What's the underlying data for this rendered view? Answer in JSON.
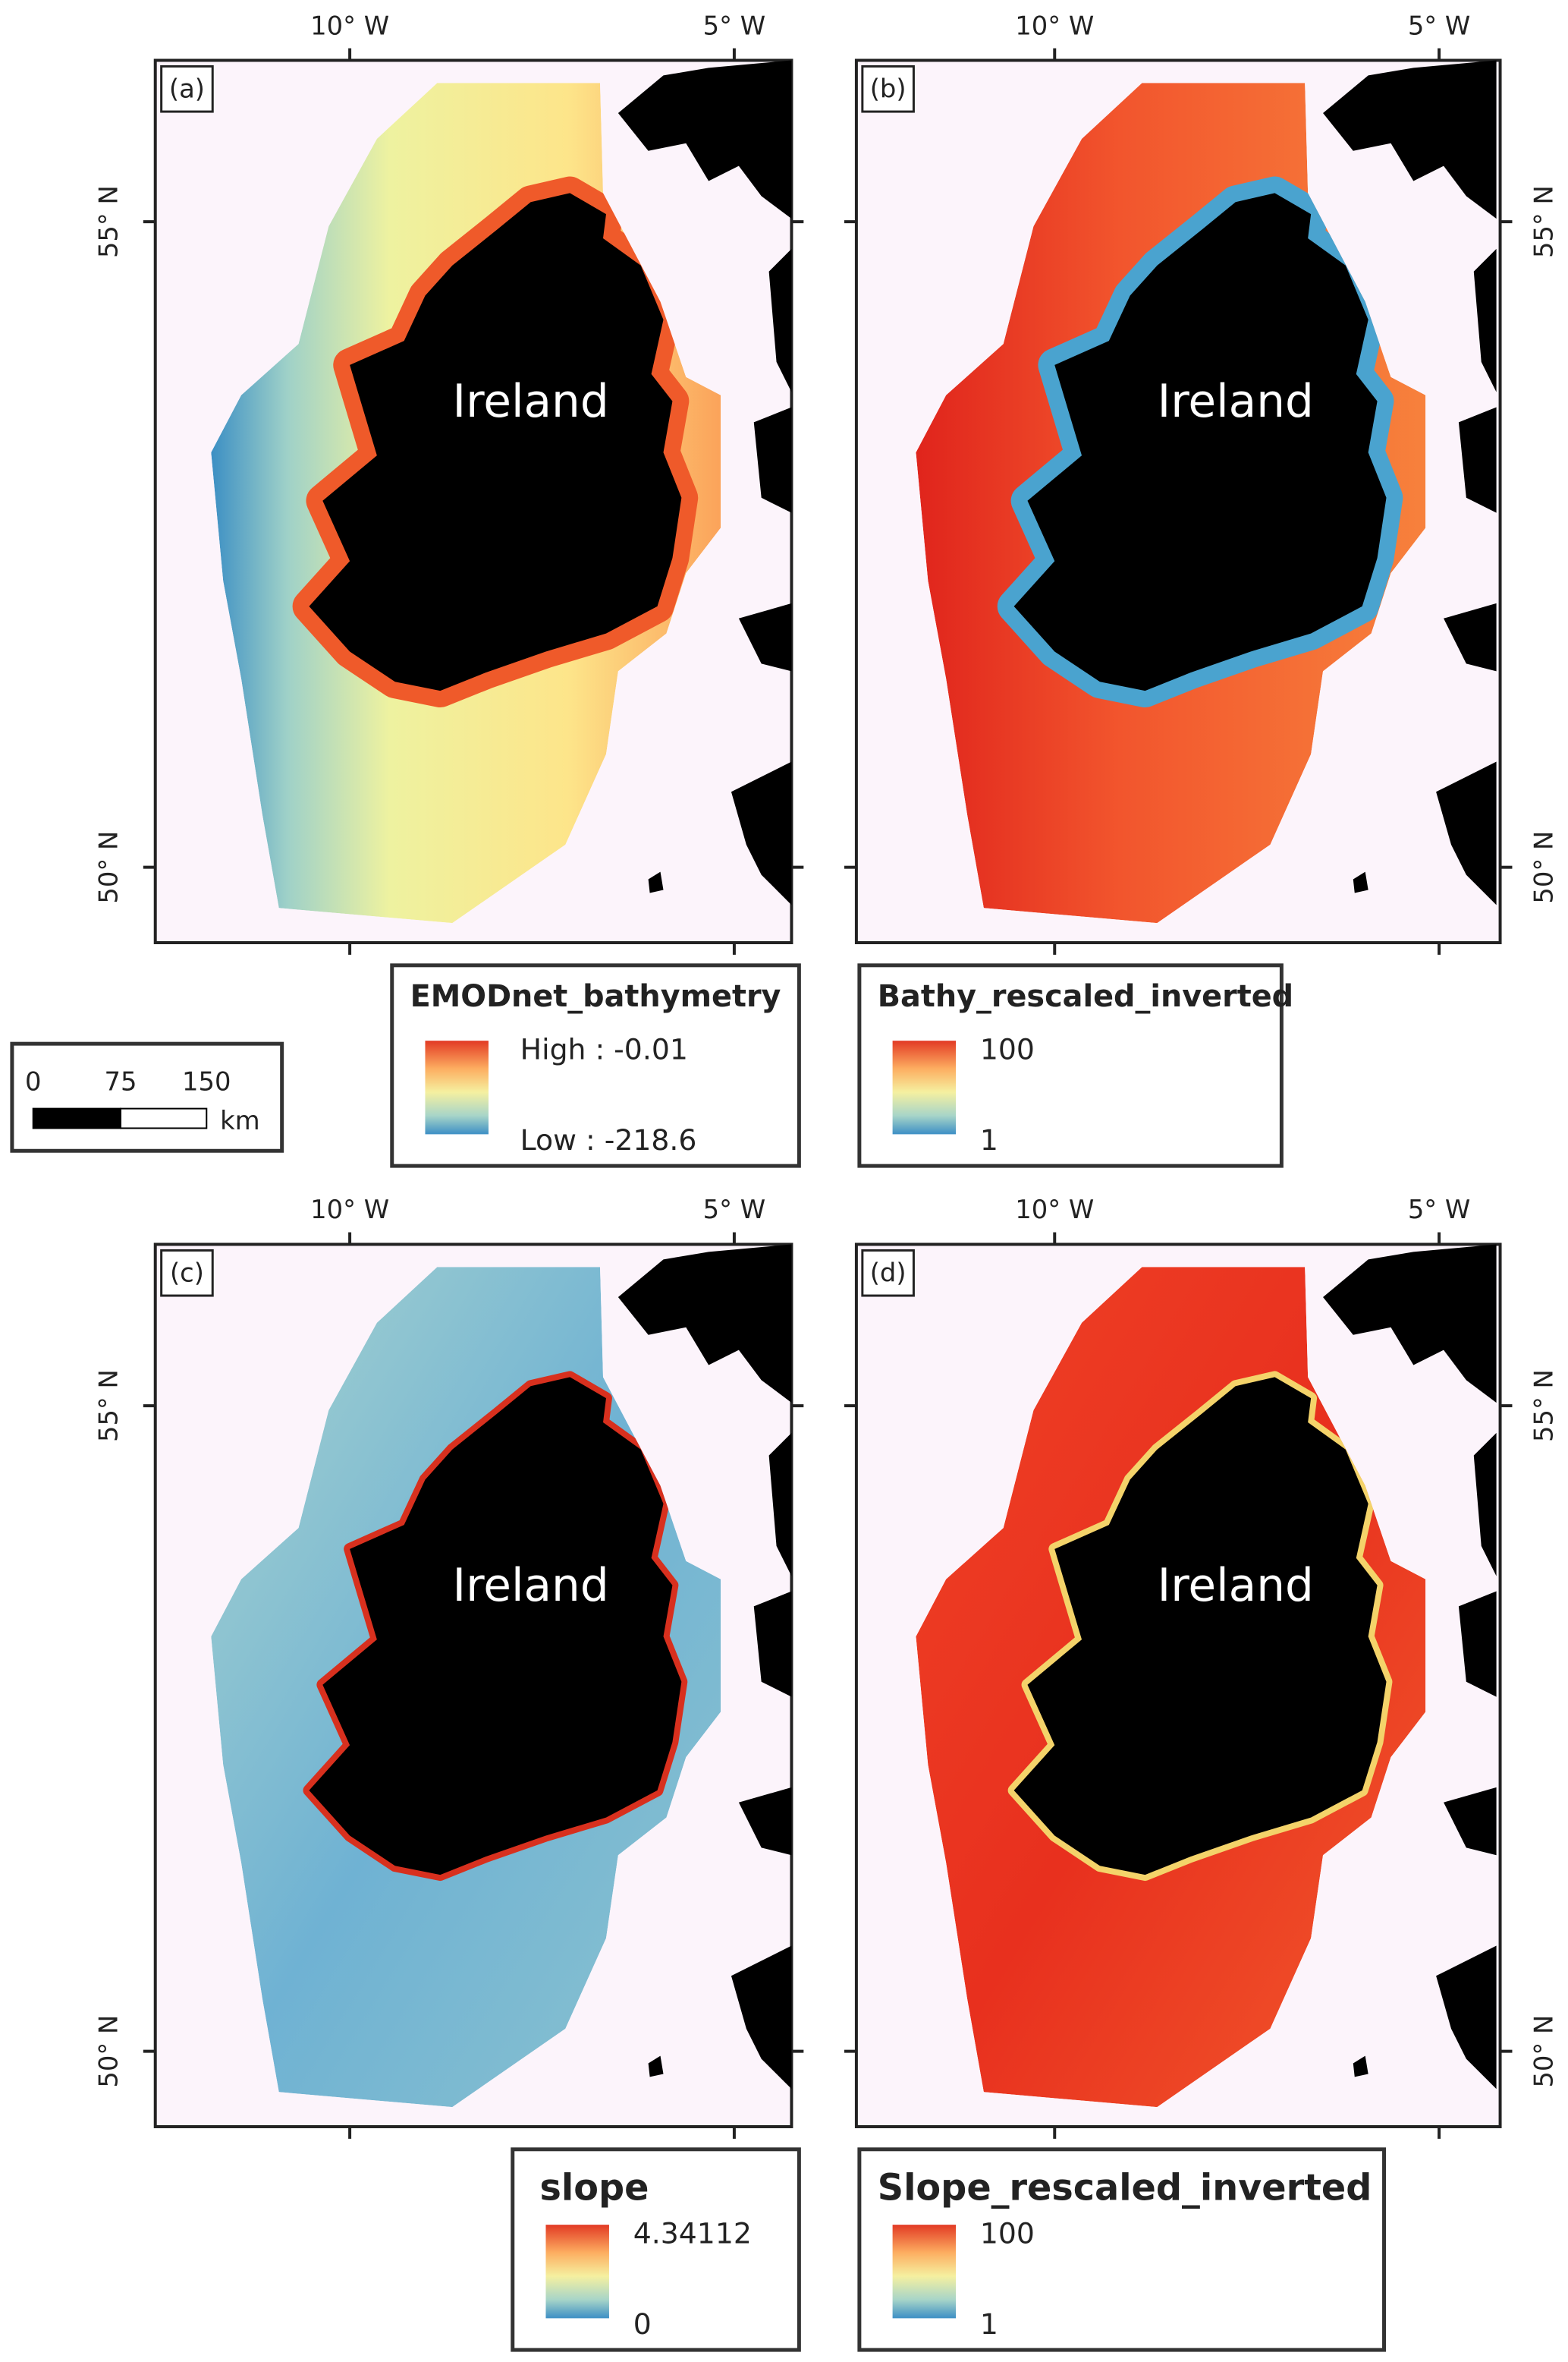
{
  "panels": [
    {
      "label": "(a)",
      "place": "Ireland",
      "lon_ticks": [
        "10° W",
        "5° W"
      ],
      "lat_ticks": [
        "55° N",
        "50° N"
      ],
      "legend": {
        "title": "EMODnet_bathymetry",
        "high": "High : -0.01",
        "low": "Low : -218.6"
      }
    },
    {
      "label": "(b)",
      "place": "Ireland",
      "lon_ticks": [
        "10° W",
        "5° W"
      ],
      "lat_ticks": [
        "55° N",
        "50° N"
      ],
      "legend": {
        "title": "Bathy_rescaled_inverted",
        "high": "100",
        "low": "1"
      }
    },
    {
      "label": "(c)",
      "place": "Ireland",
      "lon_ticks": [
        "10° W",
        "5° W"
      ],
      "lat_ticks": [
        "55° N",
        "50° N"
      ],
      "legend": {
        "title": "slope",
        "high": "4.34112",
        "low": "0"
      }
    },
    {
      "label": "(d)",
      "place": "Ireland",
      "lon_ticks": [
        "10° W",
        "5° W"
      ],
      "lat_ticks": [
        "55° N",
        "50° N"
      ],
      "legend": {
        "title": "Slope_rescaled_inverted",
        "high": "100",
        "low": "1"
      }
    }
  ],
  "scale_bar": {
    "ticks": [
      "0",
      "75",
      "150"
    ],
    "unit": "km"
  }
}
